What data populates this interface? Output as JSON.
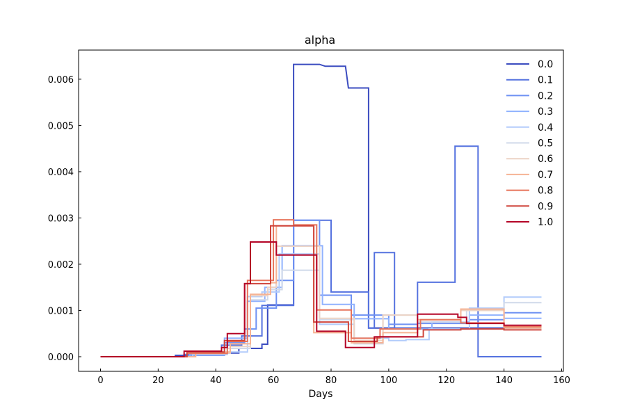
{
  "chart_data": {
    "type": "line",
    "title": "alpha",
    "xlabel": "Days",
    "ylabel": "",
    "xlim": [
      -7.6,
      160.6
    ],
    "ylim": [
      -0.000316,
      0.00663
    ],
    "x_ticks": [
      0,
      20,
      40,
      60,
      80,
      100,
      120,
      140,
      160
    ],
    "x_tick_labels": [
      "0",
      "20",
      "40",
      "60",
      "80",
      "100",
      "120",
      "140",
      "160"
    ],
    "y_ticks": [
      0.0,
      0.001,
      0.002,
      0.003,
      0.004,
      0.005,
      0.006
    ],
    "y_tick_labels": [
      "0.000",
      "0.001",
      "0.002",
      "0.003",
      "0.004",
      "0.005",
      "0.006"
    ],
    "grid": false,
    "legend_position": "top-right",
    "series": [
      {
        "name": "0.0",
        "color": "#3b4cc0",
        "points": [
          [
            0,
            0
          ],
          [
            26,
            0
          ],
          [
            26,
            3e-05
          ],
          [
            42,
            3e-05
          ],
          [
            42,
            8e-05
          ],
          [
            48,
            8e-05
          ],
          [
            48,
            0.00018
          ],
          [
            56,
            0.00018
          ],
          [
            56,
            0.00027
          ],
          [
            58,
            0.00027
          ],
          [
            58,
            0.00112
          ],
          [
            67,
            0.00112
          ],
          [
            67,
            0.00632
          ],
          [
            76,
            0.00632
          ],
          [
            78,
            0.00628
          ],
          [
            85,
            0.00628
          ],
          [
            86,
            0.00581
          ],
          [
            93,
            0.00581
          ],
          [
            93,
            0.00062
          ],
          [
            153,
            0.00062
          ]
        ]
      },
      {
        "name": "0.1",
        "color": "#5572df",
        "points": [
          [
            0,
            0
          ],
          [
            29,
            0
          ],
          [
            29,
            5e-05
          ],
          [
            42,
            5e-05
          ],
          [
            42,
            0.00025
          ],
          [
            49,
            0.00025
          ],
          [
            49,
            0.00045
          ],
          [
            56,
            0.00045
          ],
          [
            56,
            0.00111
          ],
          [
            67,
            0.00111
          ],
          [
            67,
            0.00295
          ],
          [
            80,
            0.00295
          ],
          [
            80,
            0.0014
          ],
          [
            93,
            0.0014
          ],
          [
            93,
            0.00062
          ],
          [
            95,
            0.00062
          ],
          [
            95,
            0.00225
          ],
          [
            102,
            0.00225
          ],
          [
            102,
            0.00062
          ],
          [
            110,
            0.00062
          ],
          [
            110,
            0.00161
          ],
          [
            123,
            0.00161
          ],
          [
            123,
            0.00455
          ],
          [
            131,
            0.00455
          ],
          [
            131,
            0
          ],
          [
            153,
            0
          ]
        ]
      },
      {
        "name": "0.2",
        "color": "#6f92f3",
        "points": [
          [
            0,
            0
          ],
          [
            30,
            0
          ],
          [
            30,
            3e-05
          ],
          [
            43,
            3e-05
          ],
          [
            43,
            0.0003
          ],
          [
            50,
            0.0003
          ],
          [
            50,
            0.0006
          ],
          [
            54,
            0.0006
          ],
          [
            54,
            0.00105
          ],
          [
            61,
            0.00105
          ],
          [
            61,
            0.00165
          ],
          [
            67,
            0.00165
          ],
          [
            67,
            0.00295
          ],
          [
            76,
            0.00295
          ],
          [
            76,
            0.00133
          ],
          [
            87,
            0.00133
          ],
          [
            87,
            0.0009
          ],
          [
            100,
            0.0009
          ],
          [
            100,
            0.0007
          ],
          [
            110,
            0.0007
          ],
          [
            110,
            0.00072
          ],
          [
            128,
            0.00072
          ],
          [
            128,
            0.0008
          ],
          [
            140,
            0.0008
          ],
          [
            140,
            0.00095
          ],
          [
            153,
            0.00095
          ]
        ]
      },
      {
        "name": "0.3",
        "color": "#90b2fe",
        "points": [
          [
            0,
            0
          ],
          [
            31,
            0
          ],
          [
            31,
            4e-05
          ],
          [
            43,
            4e-05
          ],
          [
            43,
            0.0004
          ],
          [
            51,
            0.0004
          ],
          [
            51,
            0.0012
          ],
          [
            57,
            0.0012
          ],
          [
            57,
            0.0015
          ],
          [
            63,
            0.0015
          ],
          [
            63,
            0.0024
          ],
          [
            77,
            0.0024
          ],
          [
            77,
            0.00113
          ],
          [
            88,
            0.00113
          ],
          [
            88,
            0.00082
          ],
          [
            100,
            0.00082
          ],
          [
            100,
            0.0006
          ],
          [
            115,
            0.0006
          ],
          [
            115,
            0.00075
          ],
          [
            128,
            0.00075
          ],
          [
            128,
            0.0009
          ],
          [
            140,
            0.0009
          ],
          [
            140,
            0.00083
          ],
          [
            153,
            0.00083
          ]
        ]
      },
      {
        "name": "0.4",
        "color": "#b2ccfb",
        "points": [
          [
            0,
            0
          ],
          [
            32,
            0
          ],
          [
            32,
            5e-05
          ],
          [
            44,
            5e-05
          ],
          [
            44,
            0.0001
          ],
          [
            51,
            0.0001
          ],
          [
            51,
            0.0013
          ],
          [
            56,
            0.0013
          ],
          [
            56,
            0.0014
          ],
          [
            62,
            0.0014
          ],
          [
            62,
            0.00222
          ],
          [
            76,
            0.00222
          ],
          [
            76,
            0.0007
          ],
          [
            88,
            0.0007
          ],
          [
            88,
            0.0004
          ],
          [
            100,
            0.0004
          ],
          [
            100,
            0.00035
          ],
          [
            106,
            0.00035
          ],
          [
            106,
            0.00037
          ],
          [
            114,
            0.00037
          ],
          [
            114,
            0.0006
          ],
          [
            128,
            0.0006
          ],
          [
            128,
            0.00105
          ],
          [
            140,
            0.00105
          ],
          [
            140,
            0.00129
          ],
          [
            153,
            0.00129
          ]
        ]
      },
      {
        "name": "0.5",
        "color": "#d0d9ea",
        "points": [
          [
            0,
            0
          ],
          [
            33,
            0
          ],
          [
            33,
            7e-05
          ],
          [
            44,
            7e-05
          ],
          [
            44,
            0.00018
          ],
          [
            52,
            0.00018
          ],
          [
            52,
            0.00123
          ],
          [
            58,
            0.00123
          ],
          [
            58,
            0.00145
          ],
          [
            63,
            0.00145
          ],
          [
            63,
            0.00187
          ],
          [
            76,
            0.00187
          ],
          [
            76,
            0.0008
          ],
          [
            88,
            0.0008
          ],
          [
            88,
            0.00028
          ],
          [
            98,
            0.00028
          ],
          [
            98,
            0.0009
          ],
          [
            110,
            0.0009
          ],
          [
            110,
            0.00075
          ],
          [
            127,
            0.00075
          ],
          [
            127,
            0.00102
          ],
          [
            140,
            0.00102
          ],
          [
            140,
            0.00117
          ],
          [
            153,
            0.00117
          ]
        ]
      },
      {
        "name": "0.6",
        "color": "#ecd3c5",
        "points": [
          [
            0,
            0
          ],
          [
            33,
            0
          ],
          [
            33,
            8e-05
          ],
          [
            45,
            8e-05
          ],
          [
            45,
            0.00022
          ],
          [
            52,
            0.00022
          ],
          [
            52,
            0.00132
          ],
          [
            58,
            0.00132
          ],
          [
            58,
            0.0015
          ],
          [
            61,
            0.0015
          ],
          [
            61,
            0.00239
          ],
          [
            76,
            0.00239
          ],
          [
            76,
            0.00083
          ],
          [
            88,
            0.00083
          ],
          [
            88,
            0.00035
          ],
          [
            98,
            0.00035
          ],
          [
            98,
            0.0009
          ],
          [
            110,
            0.0009
          ],
          [
            110,
            0.0008
          ],
          [
            125,
            0.0008
          ],
          [
            125,
            0.001
          ],
          [
            140,
            0.001
          ],
          [
            140,
            0.00062
          ],
          [
            153,
            0.00062
          ]
        ]
      },
      {
        "name": "0.7",
        "color": "#f6b394",
        "points": [
          [
            0,
            0
          ],
          [
            33,
            0
          ],
          [
            33,
            0.0001
          ],
          [
            45,
            0.0001
          ],
          [
            45,
            0.00028
          ],
          [
            52,
            0.00028
          ],
          [
            52,
            0.00135
          ],
          [
            59,
            0.00135
          ],
          [
            59,
            0.0016
          ],
          [
            61,
            0.0016
          ],
          [
            61,
            0.00283
          ],
          [
            74,
            0.00283
          ],
          [
            74,
            0.00052
          ],
          [
            87,
            0.00052
          ],
          [
            87,
            0.0003
          ],
          [
            98,
            0.0003
          ],
          [
            98,
            0.00052
          ],
          [
            110,
            0.00052
          ],
          [
            110,
            0.0008
          ],
          [
            125,
            0.0008
          ],
          [
            125,
            0.00103
          ],
          [
            140,
            0.00103
          ],
          [
            140,
            0.00062
          ],
          [
            153,
            0.00062
          ]
        ]
      },
      {
        "name": "0.8",
        "color": "#e7745b",
        "points": [
          [
            0,
            0
          ],
          [
            30,
            0
          ],
          [
            30,
            7e-05
          ],
          [
            44,
            7e-05
          ],
          [
            44,
            0.00033
          ],
          [
            51,
            0.00033
          ],
          [
            51,
            0.00165
          ],
          [
            59,
            0.00165
          ],
          [
            59,
            0.00165
          ],
          [
            60,
            0.00165
          ],
          [
            60,
            0.00296
          ],
          [
            67,
            0.00296
          ],
          [
            67,
            0.00285
          ],
          [
            75,
            0.00285
          ],
          [
            75,
            0.00101
          ],
          [
            87,
            0.00101
          ],
          [
            87,
            0.0004
          ],
          [
            97,
            0.0004
          ],
          [
            97,
            0.0006
          ],
          [
            111,
            0.0006
          ],
          [
            111,
            0.0008
          ],
          [
            125,
            0.0008
          ],
          [
            125,
            0.00073
          ],
          [
            140,
            0.00073
          ],
          [
            140,
            0.00065
          ],
          [
            153,
            0.00065
          ]
        ]
      },
      {
        "name": "0.9",
        "color": "#cf453c",
        "points": [
          [
            0,
            0
          ],
          [
            30,
            0
          ],
          [
            30,
            0.0001
          ],
          [
            43,
            0.0001
          ],
          [
            43,
            0.00035
          ],
          [
            50,
            0.00035
          ],
          [
            50,
            0.00158
          ],
          [
            59,
            0.00158
          ],
          [
            59,
            0.00283
          ],
          [
            74,
            0.00283
          ],
          [
            74,
            0.00075
          ],
          [
            86,
            0.00075
          ],
          [
            86,
            0.00033
          ],
          [
            96,
            0.00033
          ],
          [
            96,
            0.00043
          ],
          [
            112,
            0.00043
          ],
          [
            112,
            0.00058
          ],
          [
            125,
            0.00058
          ],
          [
            125,
            0.0006
          ],
          [
            140,
            0.0006
          ],
          [
            140,
            0.00058
          ],
          [
            153,
            0.00058
          ]
        ]
      },
      {
        "name": "1.0",
        "color": "#b40426",
        "points": [
          [
            0,
            0
          ],
          [
            29,
            0
          ],
          [
            29,
            0.00012
          ],
          [
            42,
            0.00012
          ],
          [
            42,
            0.0002
          ],
          [
            44,
            0.0002
          ],
          [
            44,
            0.0005
          ],
          [
            50,
            0.0005
          ],
          [
            50,
            0.00158
          ],
          [
            52,
            0.00158
          ],
          [
            52,
            0.00248
          ],
          [
            61,
            0.00248
          ],
          [
            61,
            0.0022
          ],
          [
            75,
            0.0022
          ],
          [
            75,
            0.00055
          ],
          [
            85,
            0.00055
          ],
          [
            85,
            0.0002
          ],
          [
            95,
            0.0002
          ],
          [
            95,
            0.00043
          ],
          [
            110,
            0.00043
          ],
          [
            110,
            0.00092
          ],
          [
            124,
            0.00092
          ],
          [
            124,
            0.00085
          ],
          [
            127,
            0.00085
          ],
          [
            127,
            0.00072
          ],
          [
            140,
            0.00072
          ],
          [
            140,
            0.00068
          ],
          [
            153,
            0.00068
          ]
        ]
      }
    ]
  }
}
